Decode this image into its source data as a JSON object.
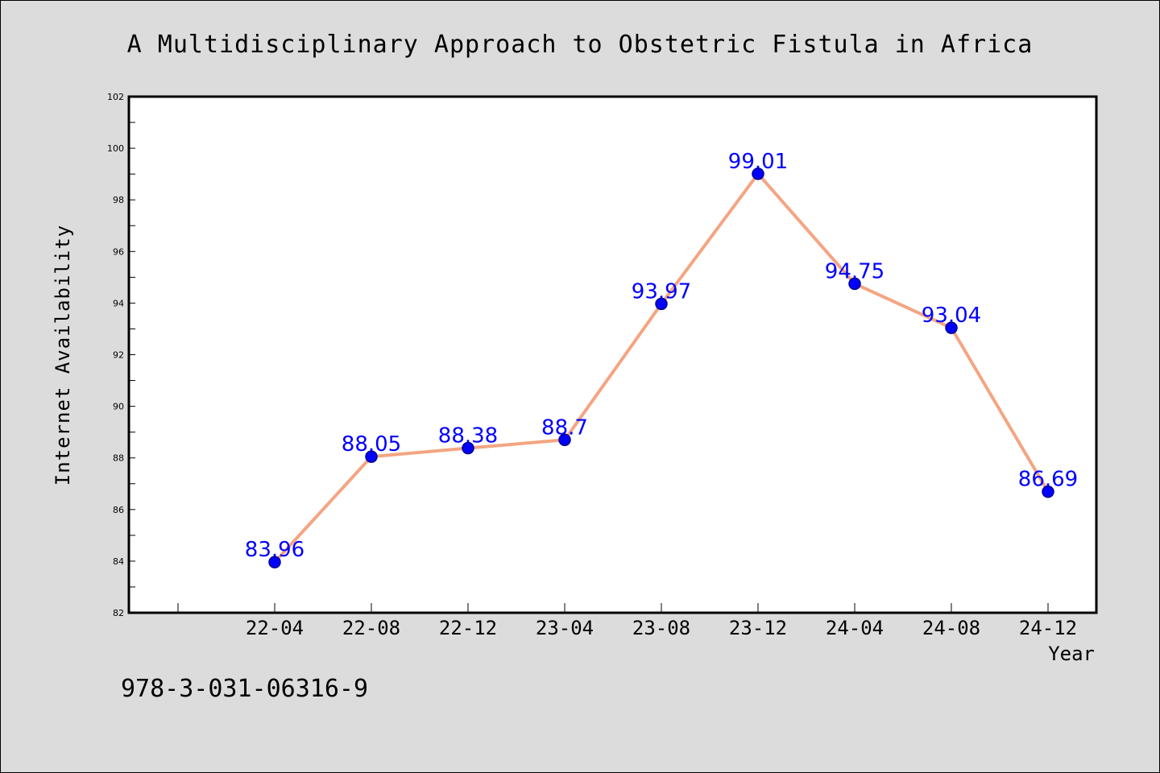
{
  "chart_data": {
    "type": "line",
    "title": "A Multidisciplinary Approach to Obstetric Fistula in Africa",
    "xlabel": "Year",
    "ylabel": "Internet Availability",
    "categories": [
      "22-04",
      "22-08",
      "22-12",
      "23-04",
      "23-08",
      "23-12",
      "24-04",
      "24-08",
      "24-12"
    ],
    "series": [
      {
        "values": [
          83.96,
          88.05,
          88.38,
          88.7,
          93.97,
          99.01,
          94.75,
          93.04,
          86.69
        ],
        "data_labels": [
          "83.96",
          "88.05",
          "88.38",
          "88.7",
          "93.97",
          "99.01",
          "94.75",
          "93.04",
          "86.69"
        ]
      }
    ],
    "ylim": [
      82,
      102
    ],
    "yticks": [
      82,
      84,
      86,
      88,
      90,
      92,
      94,
      96,
      98,
      100,
      102
    ],
    "grid": false,
    "colors": {
      "line": "#f4a582",
      "marker": "#0000ff",
      "marker_edge": "#00008b",
      "data_label": "#0000ff",
      "figure_background": "#dcdcdc",
      "plot_background": "#ffffff"
    }
  },
  "footnote": "978-3-031-06316-9"
}
